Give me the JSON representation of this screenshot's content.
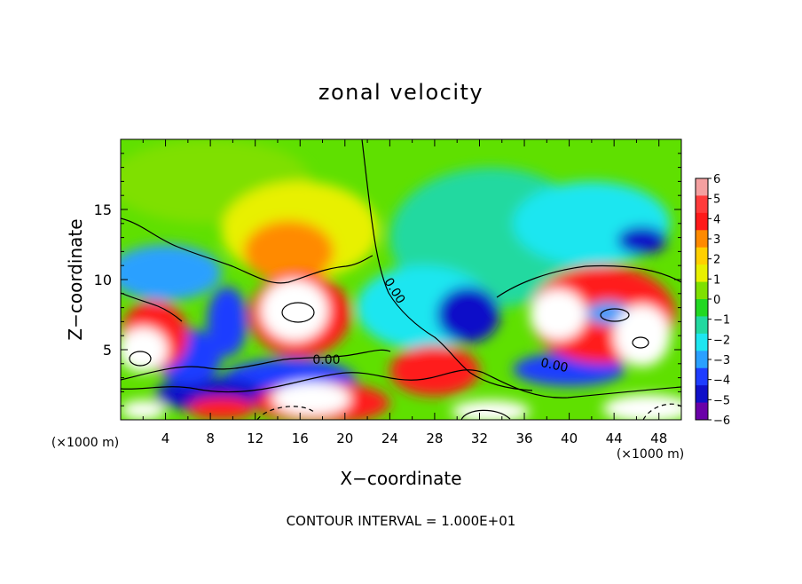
{
  "chart_data": {
    "type": "heatmap",
    "title": "zonal velocity",
    "xlabel": "X−coordinate",
    "ylabel": "Z−coordinate",
    "x_unit_left": "(×1000 m)",
    "x_unit_right": "(×1000 m)",
    "footer": "CONTOUR INTERVAL = 1.000E+01",
    "xlim": [
      0,
      50
    ],
    "ylim": [
      0,
      20
    ],
    "x_ticks": [
      "4",
      "8",
      "12",
      "16",
      "20",
      "24",
      "28",
      "32",
      "36",
      "40",
      "44",
      "48"
    ],
    "y_ticks": [
      "5",
      "10",
      "15"
    ],
    "colorbar": {
      "labels": [
        "6",
        "5",
        "4",
        "3",
        "2",
        "1",
        "0",
        "−1",
        "−2",
        "−3",
        "−4",
        "−5",
        "−6"
      ],
      "colors": [
        "#f4a0a0",
        "#ff3b3b",
        "#ff1a1a",
        "#ff8a00",
        "#ffd000",
        "#e8f000",
        "#7fe000",
        "#22d822",
        "#22d9a0",
        "#1ee6f0",
        "#2aa0ff",
        "#1e3dff",
        "#1010c8",
        "#6a00a8"
      ]
    },
    "contour_labels": [
      "0.00",
      "0.00",
      "0.00"
    ],
    "field_regions": [
      {
        "level": 0.6,
        "x": 8,
        "z": 17,
        "rx": 9,
        "rz": 3
      },
      {
        "level": 1.6,
        "x": 16,
        "z": 13.5,
        "rx": 7,
        "rz": 3.5
      },
      {
        "level": 2.6,
        "x": 15,
        "z": 12,
        "rx": 4,
        "rz": 2.2
      },
      {
        "level": 3.2,
        "x": 15.5,
        "z": 11,
        "rx": 2.5,
        "rz": 1.4
      },
      {
        "level": -1.5,
        "x": 33,
        "z": 13,
        "rx": 9,
        "rz": 5
      },
      {
        "level": -2.2,
        "x": 42,
        "z": 14,
        "rx": 7,
        "rz": 3
      },
      {
        "level": -4.5,
        "x": 46.5,
        "z": 12.8,
        "rx": 2.2,
        "rz": 1
      },
      {
        "level": -2.8,
        "x": 4,
        "z": 10.5,
        "rx": 5,
        "rz": 2
      },
      {
        "level": -2,
        "x": 27,
        "z": 8,
        "rx": 6,
        "rz": 3
      },
      {
        "level": -5,
        "x": 31,
        "z": 7.5,
        "rx": 2.8,
        "rz": 2
      },
      {
        "level": -4,
        "x": 9.5,
        "z": 7,
        "rx": 1.8,
        "rz": 2.5
      },
      {
        "level": -4,
        "x": 15,
        "z": 2.8,
        "rx": 6,
        "rz": 1.6
      },
      {
        "level": -4,
        "x": 40,
        "z": 3.6,
        "rx": 5,
        "rz": 1.2
      },
      {
        "level": -4.5,
        "x": 8,
        "z": 1.8,
        "rx": 5,
        "rz": 1.2
      },
      {
        "level": -3.5,
        "x": 6,
        "z": 4.5,
        "rx": 3,
        "rz": 2
      },
      {
        "level": 4,
        "x": 3,
        "z": 6,
        "rx": 3,
        "rz": 2.5
      },
      {
        "level": 6.5,
        "x": 2,
        "z": 5,
        "rx": 2.2,
        "rz": 1.6
      },
      {
        "level": 4,
        "x": 16,
        "z": 7.5,
        "rx": 4.5,
        "rz": 3
      },
      {
        "level": 6.5,
        "x": 15.5,
        "z": 7.8,
        "rx": 3,
        "rz": 2.2
      },
      {
        "level": 4,
        "x": 28,
        "z": 3.5,
        "rx": 4,
        "rz": 1.8
      },
      {
        "level": 4,
        "x": 43,
        "z": 7.5,
        "rx": 6.5,
        "rz": 3.5
      },
      {
        "level": 6.5,
        "x": 39,
        "z": 7.5,
        "rx": 2.5,
        "rz": 1.8
      },
      {
        "level": -3,
        "x": 43.5,
        "z": 7.6,
        "rx": 2,
        "rz": 0.8
      },
      {
        "level": 6.5,
        "x": 46.5,
        "z": 6,
        "rx": 2.5,
        "rz": 2.2
      },
      {
        "level": 4,
        "x": 18,
        "z": 1.2,
        "rx": 6,
        "rz": 1.5
      },
      {
        "level": 6.5,
        "x": 17,
        "z": 1.5,
        "rx": 3.5,
        "rz": 1.2
      },
      {
        "level": 6.5,
        "x": 33,
        "z": 0.6,
        "rx": 3.5,
        "rz": 0.8
      },
      {
        "level": 6.5,
        "x": 47,
        "z": 0.8,
        "rx": 4,
        "rz": 1
      },
      {
        "level": 4,
        "x": 9,
        "z": 0.8,
        "rx": 3,
        "rz": 0.8
      },
      {
        "level": 6.5,
        "x": 2,
        "z": 0.7,
        "rx": 2,
        "rz": 0.7
      }
    ]
  }
}
